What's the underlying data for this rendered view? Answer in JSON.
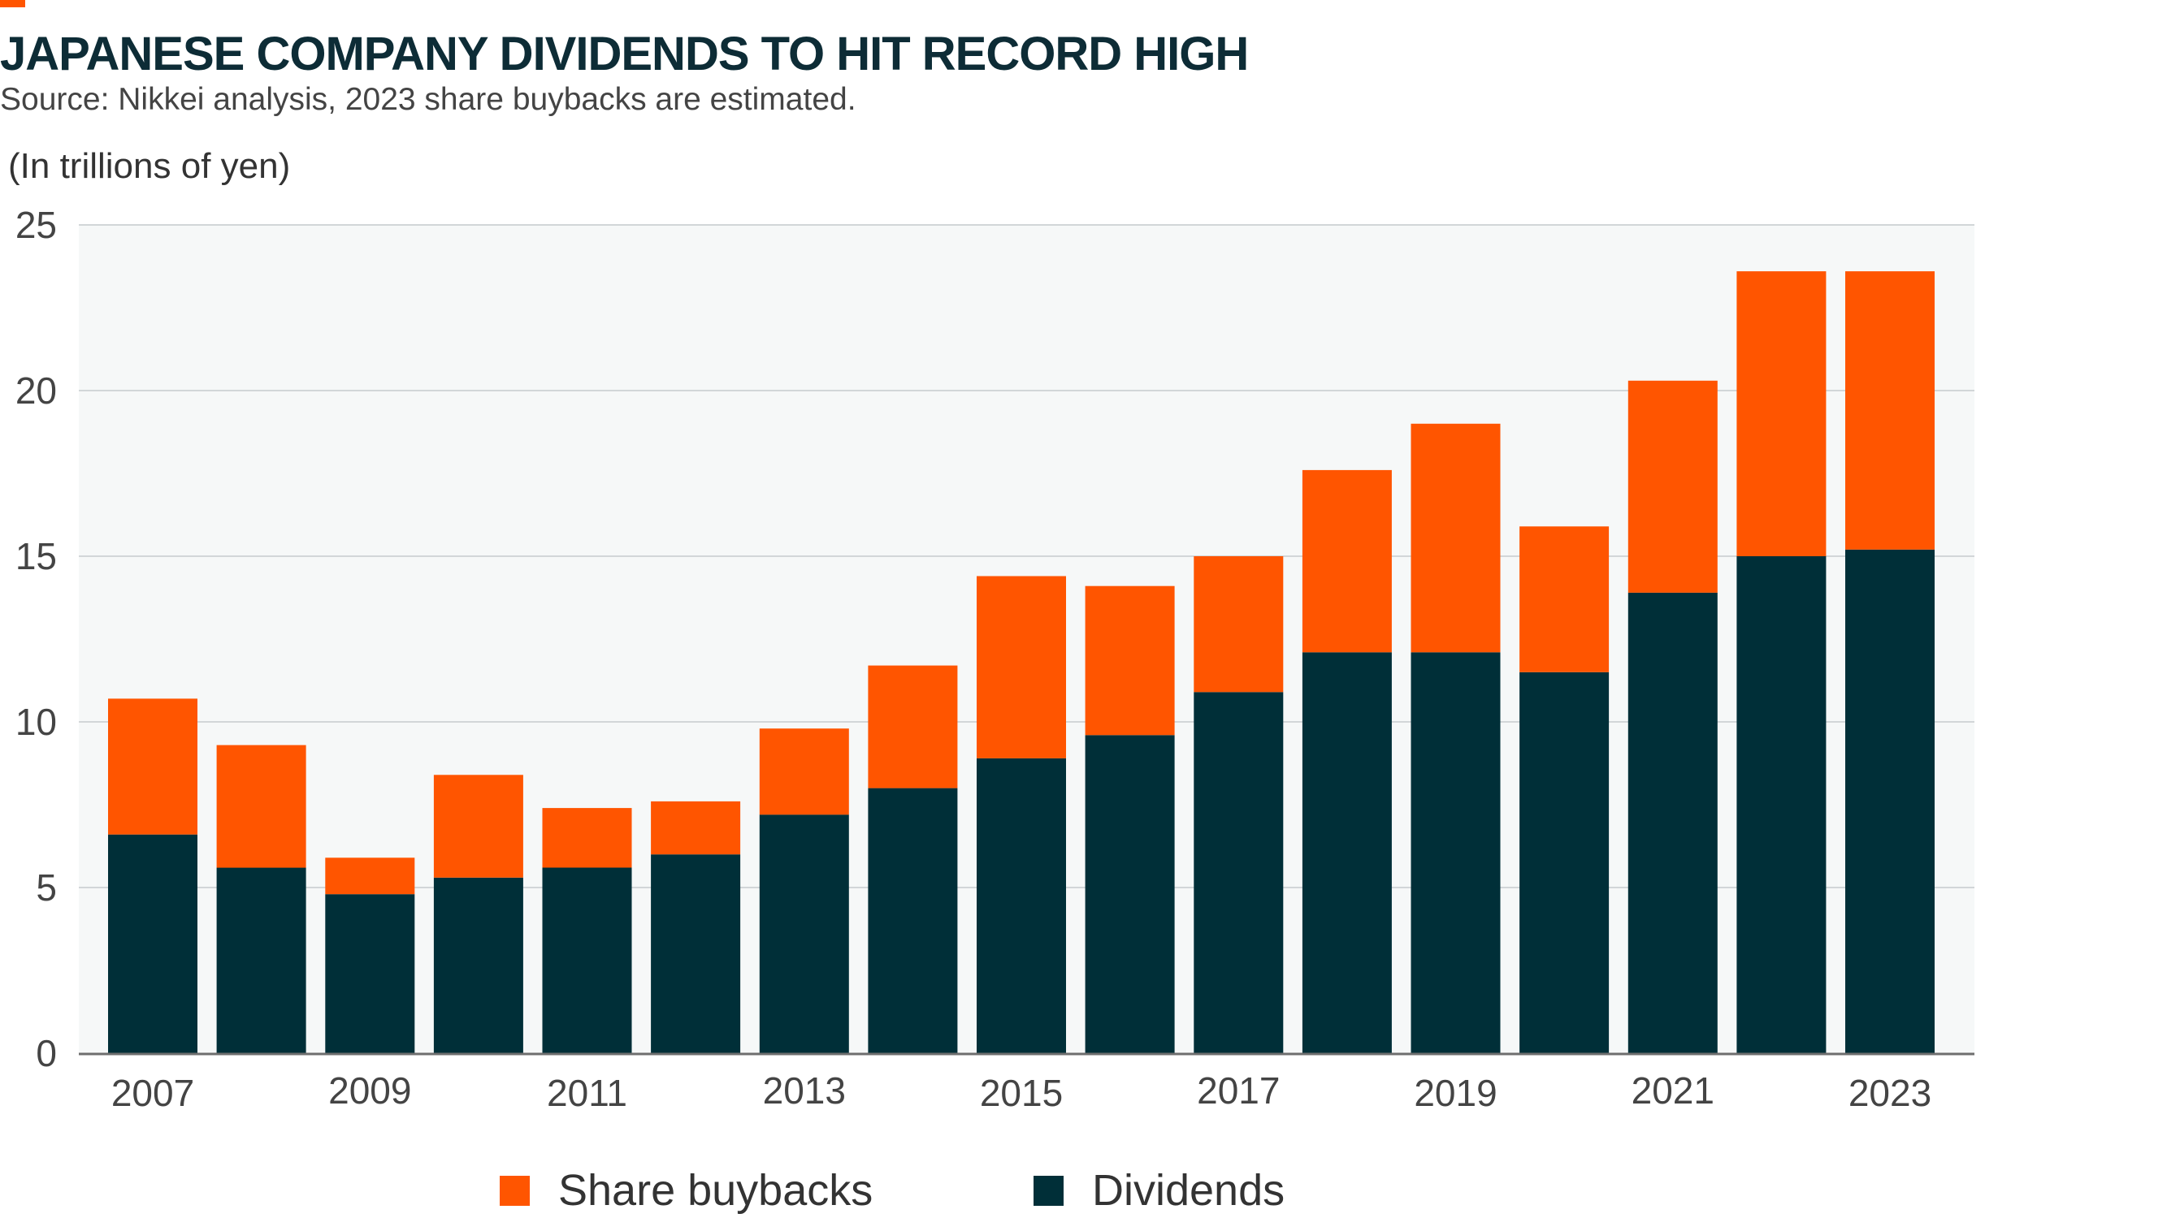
{
  "title": "JAPANESE COMPANY DIVIDENDS TO HIT RECORD HIGH",
  "subtitle": "Source: Nikkei analysis, 2023 share buybacks are estimated.",
  "colors": {
    "accent": "#ff5500",
    "dividends": "#002f38",
    "buybacks": "#ff5500",
    "plot_background": "#f6f8f8",
    "grid": "#d2d6d8",
    "axis": "#6e6e6e"
  },
  "chart_data": {
    "type": "bar",
    "stacked": true,
    "unit_label": "(In trillions of yen)",
    "categories": [
      "2007",
      "2008",
      "2009",
      "2010",
      "2011",
      "2012",
      "2013",
      "2014",
      "2015",
      "2016",
      "2017",
      "2018",
      "2019",
      "2020",
      "2021",
      "2022",
      "2023"
    ],
    "x_tick_labels": [
      "2007",
      "2009",
      "2011",
      "2013",
      "2015",
      "2017",
      "2019",
      "2021",
      "2023"
    ],
    "series": [
      {
        "name": "Dividends",
        "color": "#002f38",
        "values": [
          6.6,
          5.6,
          4.8,
          5.3,
          5.6,
          6.0,
          7.2,
          8.0,
          8.9,
          9.6,
          10.9,
          12.1,
          12.1,
          11.5,
          13.9,
          15.0,
          15.2
        ]
      },
      {
        "name": "Share buybacks",
        "color": "#ff5500",
        "values": [
          4.1,
          3.7,
          1.1,
          3.1,
          1.8,
          1.6,
          2.6,
          3.7,
          5.5,
          4.5,
          4.1,
          5.5,
          6.9,
          4.4,
          6.4,
          8.6,
          8.4
        ]
      }
    ],
    "ylim": [
      0,
      25
    ],
    "yticks": [
      0,
      5,
      10,
      15,
      20,
      25
    ],
    "grid": true,
    "legend": {
      "position": "bottom",
      "order": [
        "Share buybacks",
        "Dividends"
      ]
    }
  }
}
